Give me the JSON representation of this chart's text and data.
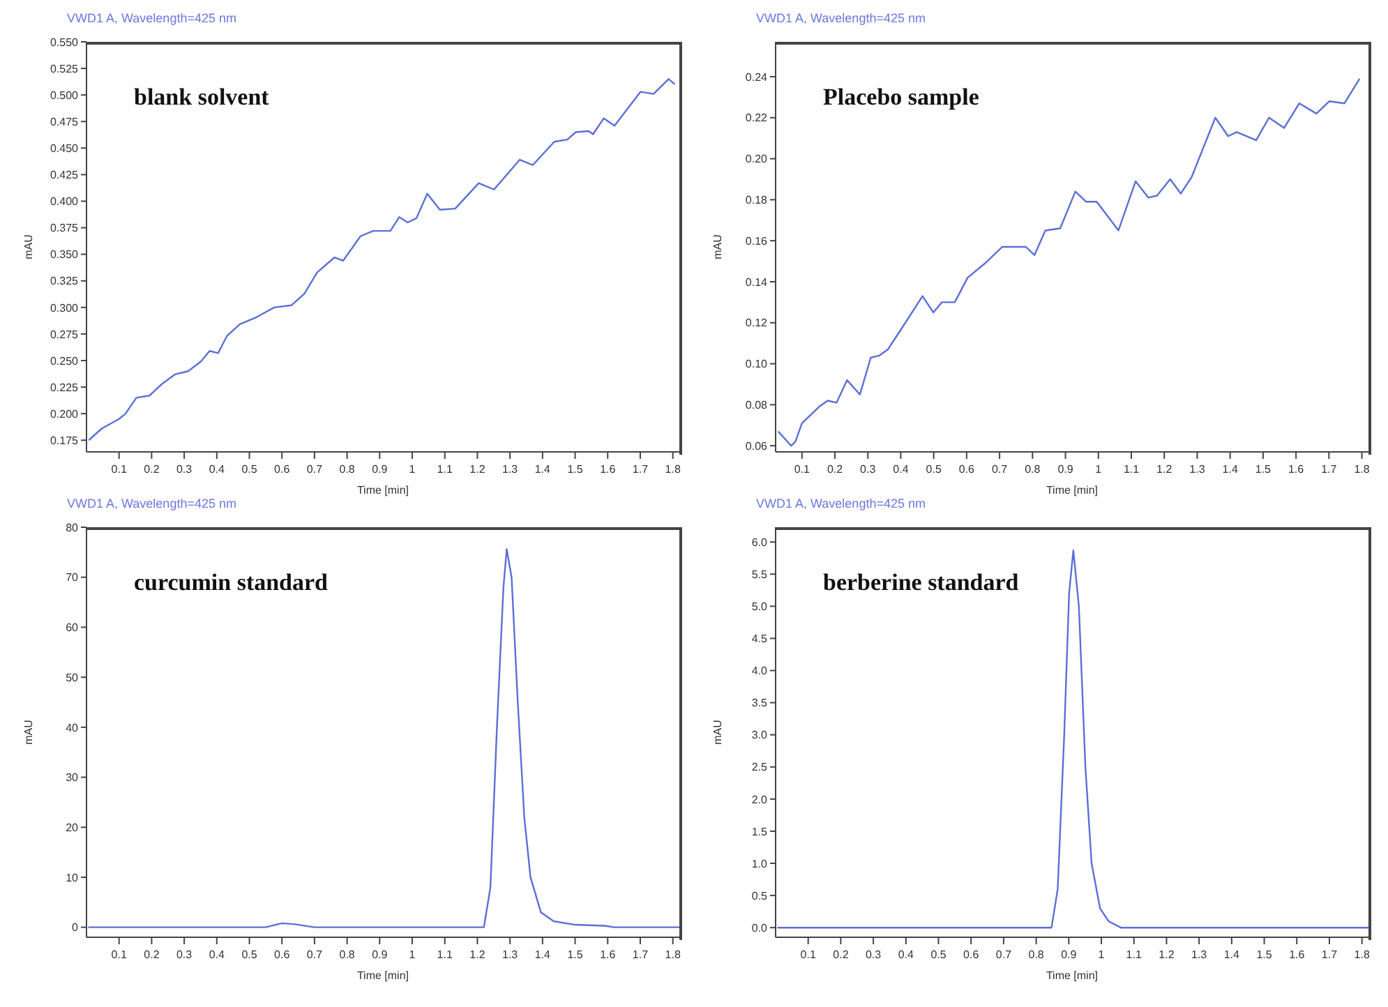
{
  "chart_data": [
    {
      "type": "line",
      "title": "blank solvent",
      "subtitle": "VWD1 A, Wavelength=425 nm",
      "xlabel": "Time [min]",
      "ylabel": "mAU",
      "grid": false,
      "legend": false,
      "marker": "none",
      "xlim": [
        0,
        1.82
      ],
      "ylim": [
        0.164,
        0.55
      ],
      "xticks": [
        0.1,
        0.2,
        0.3,
        0.4,
        0.5,
        0.6,
        0.7,
        0.8,
        0.9,
        1,
        1.1,
        1.2,
        1.3,
        1.4,
        1.5,
        1.6,
        1.7,
        1.8
      ],
      "yticks": [
        0.175,
        {
          "value": 0.2,
          "label": "0.200"
        },
        0.225,
        {
          "value": 0.25,
          "label": "0.250"
        },
        0.275,
        {
          "value": 0.3,
          "label": "0.300"
        },
        0.325,
        {
          "value": 0.35,
          "label": "0.350"
        },
        0.375,
        {
          "value": 0.4,
          "label": "0.400"
        },
        0.425,
        {
          "value": 0.45,
          "label": "0.450"
        },
        0.475,
        {
          "value": 0.5,
          "label": "0.500"
        },
        0.525,
        {
          "value": 0.55,
          "label": "0.550"
        }
      ],
      "series": [
        {
          "color": "#5b6fd6",
          "x": [
            0.007,
            0.047,
            0.1,
            0.12,
            0.153,
            0.193,
            0.232,
            0.272,
            0.312,
            0.351,
            0.378,
            0.404,
            0.431,
            0.47,
            0.523,
            0.576,
            0.629,
            0.669,
            0.708,
            0.761,
            0.788,
            0.841,
            0.88,
            0.933,
            0.96,
            0.986,
            1.013,
            1.046,
            1.085,
            1.132,
            1.204,
            1.251,
            1.33,
            1.37,
            1.436,
            1.476,
            1.502,
            1.542,
            1.555,
            1.588,
            1.621,
            1.701,
            1.741,
            1.787,
            1.806
          ],
          "values": [
            0.175,
            0.186,
            0.195,
            0.2,
            0.215,
            0.217,
            0.228,
            0.237,
            0.24,
            0.249,
            0.259,
            0.257,
            0.273,
            0.284,
            0.291,
            0.3,
            0.302,
            0.313,
            0.333,
            0.347,
            0.344,
            0.367,
            0.372,
            0.372,
            0.385,
            0.38,
            0.384,
            0.407,
            0.392,
            0.393,
            0.417,
            0.411,
            0.439,
            0.434,
            0.456,
            0.458,
            0.465,
            0.466,
            0.463,
            0.478,
            0.471,
            0.503,
            0.501,
            0.515,
            0.51
          ]
        }
      ]
    },
    {
      "type": "line",
      "title": "Placebo sample",
      "subtitle": "VWD1 A, Wavelength=425 nm",
      "xlabel": "Time [min]",
      "ylabel": "mAU",
      "grid": false,
      "legend": false,
      "marker": "none",
      "xlim": [
        0.02,
        1.82
      ],
      "ylim": [
        0.057,
        0.257
      ],
      "xticks": [
        0.1,
        0.2,
        0.3,
        0.4,
        0.5,
        0.6,
        0.7,
        0.8,
        0.9,
        1,
        1.1,
        1.2,
        1.3,
        1.4,
        1.5,
        1.6,
        1.7,
        1.8
      ],
      "yticks": [
        0.06,
        0.08,
        {
          "value": 0.1,
          "label": "0.10"
        },
        0.12,
        0.14,
        0.16,
        0.18,
        {
          "value": 0.2,
          "label": "0.20"
        },
        0.22,
        0.24
      ],
      "series": [
        {
          "color": "#5b6fd6",
          "x": [
            0.028,
            0.067,
            0.08,
            0.1,
            0.152,
            0.178,
            0.205,
            0.237,
            0.276,
            0.309,
            0.335,
            0.361,
            0.414,
            0.466,
            0.499,
            0.525,
            0.564,
            0.603,
            0.656,
            0.708,
            0.78,
            0.806,
            0.839,
            0.884,
            0.93,
            0.963,
            0.995,
            1.061,
            1.113,
            1.152,
            1.178,
            1.218,
            1.25,
            1.283,
            1.355,
            1.394,
            1.42,
            1.479,
            1.518,
            1.564,
            1.61,
            1.662,
            1.701,
            1.747,
            1.793
          ],
          "values": [
            0.067,
            0.06,
            0.062,
            0.071,
            0.079,
            0.082,
            0.081,
            0.092,
            0.085,
            0.103,
            0.104,
            0.107,
            0.12,
            0.133,
            0.125,
            0.13,
            0.13,
            0.142,
            0.149,
            0.157,
            0.157,
            0.153,
            0.165,
            0.166,
            0.184,
            0.179,
            0.179,
            0.165,
            0.189,
            0.181,
            0.182,
            0.19,
            0.183,
            0.191,
            0.22,
            0.211,
            0.213,
            0.209,
            0.22,
            0.215,
            0.227,
            0.222,
            0.228,
            0.227,
            0.239
          ]
        }
      ]
    },
    {
      "type": "line",
      "title": "curcumin standard",
      "subtitle": "VWD1 A, Wavelength=425 nm",
      "xlabel": "Time [min]",
      "ylabel": "mAU",
      "grid": false,
      "legend": false,
      "marker": "none",
      "xlim": [
        0,
        1.82
      ],
      "ylim": [
        -2,
        80
      ],
      "xticks": [
        0.1,
        0.2,
        0.3,
        0.4,
        0.5,
        0.6,
        0.7,
        0.8,
        0.9,
        1,
        1.1,
        1.2,
        1.3,
        1.4,
        1.5,
        1.6,
        1.7,
        1.8
      ],
      "yticks": [
        0,
        10,
        20,
        30,
        40,
        50,
        60,
        70,
        80
      ],
      "series": [
        {
          "color": "#5b6fd6",
          "x": [
            0.005,
            0.55,
            0.6,
            0.64,
            0.7,
            0.75,
            1.22,
            1.24,
            1.26,
            1.28,
            1.29,
            1.305,
            1.324,
            1.344,
            1.363,
            1.395,
            1.434,
            1.5,
            1.59,
            1.62,
            1.82
          ],
          "values": [
            0,
            0,
            0.8,
            0.6,
            0,
            0,
            0,
            8,
            40,
            68,
            75.6,
            70,
            45,
            22,
            10,
            3,
            1.2,
            0.5,
            0.3,
            0,
            0
          ]
        }
      ]
    },
    {
      "type": "line",
      "title": "berberine standard",
      "subtitle": "VWD1 A, Wavelength=425 nm",
      "xlabel": "Time [min]",
      "ylabel": "mAU",
      "grid": false,
      "legend": false,
      "marker": "none",
      "xlim": [
        0,
        1.82
      ],
      "ylim": [
        -0.15,
        6.23
      ],
      "xticks": [
        0.1,
        0.2,
        0.3,
        0.4,
        0.5,
        0.6,
        0.7,
        0.8,
        0.9,
        1,
        1.1,
        1.2,
        1.3,
        1.4,
        1.5,
        1.6,
        1.7,
        1.8
      ],
      "yticks": [
        {
          "value": 0,
          "label": "0.0"
        },
        0.5,
        {
          "value": 1,
          "label": "1.0"
        },
        1.5,
        {
          "value": 2,
          "label": "2.0"
        },
        2.5,
        {
          "value": 3,
          "label": "3.0"
        },
        3.5,
        {
          "value": 4,
          "label": "4.0"
        },
        4.5,
        {
          "value": 5,
          "label": "5.0"
        },
        5.5,
        {
          "value": 6,
          "label": "6.0"
        }
      ],
      "series": [
        {
          "color": "#5b6fd6",
          "x": [
            0.005,
            0.847,
            0.866,
            0.886,
            0.901,
            0.914,
            0.931,
            0.951,
            0.97,
            0.996,
            1.022,
            1.06,
            1.82
          ],
          "values": [
            0,
            0,
            0.6,
            3,
            5.2,
            5.87,
            5,
            2.5,
            1,
            0.3,
            0.1,
            0,
            0
          ]
        }
      ]
    }
  ]
}
